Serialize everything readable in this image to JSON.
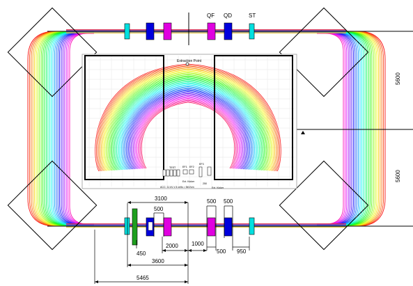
{
  "magnet_labels": {
    "qf": "QF",
    "qd": "QD",
    "st": "ST"
  },
  "dimensions": {
    "d3100": "3100",
    "d500_top": "500",
    "d450": "450",
    "d2000": "2000",
    "d1000": "1000",
    "d3600": "3600",
    "d5465": "5465",
    "d500_a": "500",
    "d500_b": "500",
    "d500_c": "500",
    "d950": "950",
    "d5600_upper": "5600",
    "d5600_lower": "5600"
  },
  "inset": {
    "extraction_point": "Extraction Point",
    "ext_kicker": "Ext. Kicker",
    "ext_kicker_2": "Ext. Kicker",
    "tested": "TEST",
    "acc_label": "ACC: 11 kV x 5 cells = 5kV/cm",
    "ef1": "EF1",
    "ef2": "EF2",
    "ef3": "EF3",
    "d250": "250"
  },
  "colors": {
    "qf": "#e000e0",
    "qd": "#0000dd",
    "st": "#00e0e0",
    "green": "#1fa01f"
  }
}
